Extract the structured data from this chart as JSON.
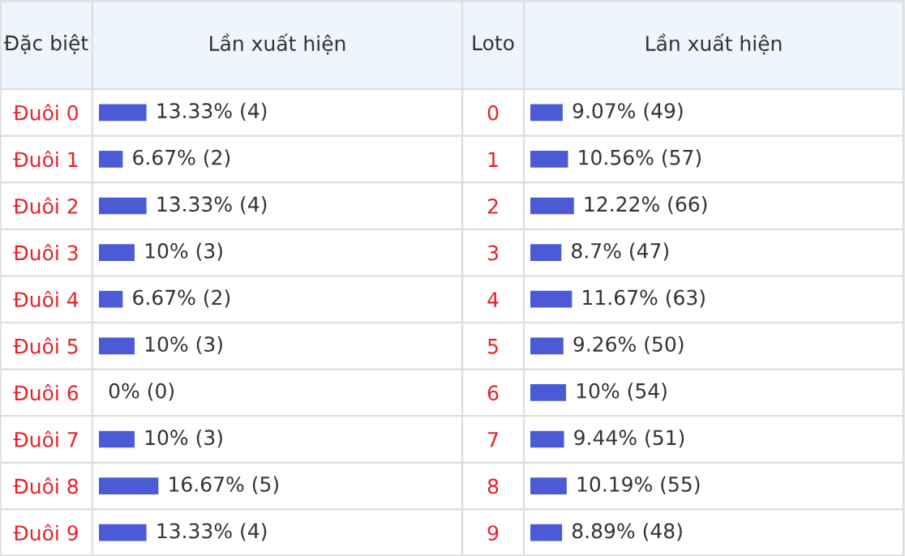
{
  "chart_data": [
    {
      "type": "bar",
      "orientation": "horizontal",
      "ylabel": "Đặc biệt",
      "xlabel": "Lần xuất hiện",
      "color": "#4b5bd6",
      "categories": [
        "Đuôi 0",
        "Đuôi 1",
        "Đuôi 2",
        "Đuôi 3",
        "Đuôi 4",
        "Đuôi 5",
        "Đuôi 6",
        "Đuôi 7",
        "Đuôi 8",
        "Đuôi 9"
      ],
      "values": [
        13.33,
        6.67,
        13.33,
        10,
        6.67,
        10,
        0,
        10,
        16.67,
        13.33
      ],
      "value_labels": [
        "13.33% (4)",
        "6.67% (2)",
        "13.33% (4)",
        "10% (3)",
        "6.67% (2)",
        "10% (3)",
        "0% (0)",
        "10% (3)",
        "16.67% (5)",
        "13.33% (4)"
      ]
    },
    {
      "type": "bar",
      "orientation": "horizontal",
      "ylabel": "Loto",
      "xlabel": "Lần xuất hiện",
      "color": "#4b5bd6",
      "categories": [
        "0",
        "1",
        "2",
        "3",
        "4",
        "5",
        "6",
        "7",
        "8",
        "9"
      ],
      "values": [
        9.07,
        10.56,
        12.22,
        8.7,
        11.67,
        9.26,
        10,
        9.44,
        10.19,
        8.89
      ],
      "value_labels": [
        "9.07% (49)",
        "10.56% (57)",
        "12.22% (66)",
        "8.7% (47)",
        "11.67% (63)",
        "9.26% (50)",
        "10% (54)",
        "9.44% (51)",
        "10.19% (55)",
        "8.89% (48)"
      ]
    }
  ]
}
